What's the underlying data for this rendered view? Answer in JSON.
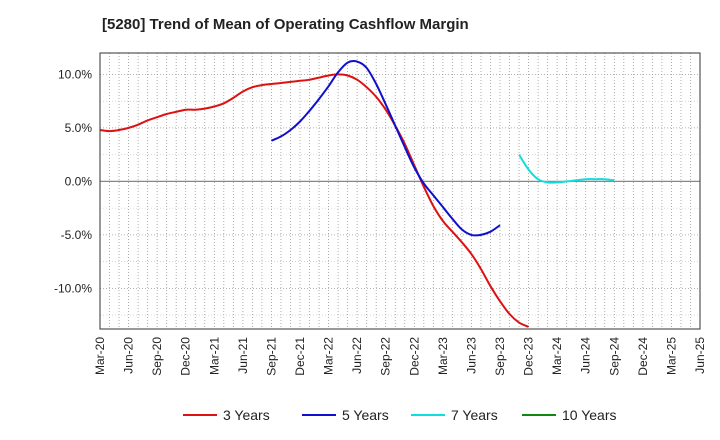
{
  "title": "[5280]  Trend of Mean of Operating Cashflow Margin",
  "chart_data": {
    "type": "line",
    "title": "[5280]  Trend of Mean of Operating Cashflow Margin",
    "xlabel": "",
    "ylabel": "",
    "x_tick_labels": [
      "Mar-20",
      "Jun-20",
      "Sep-20",
      "Dec-20",
      "Mar-21",
      "Jun-21",
      "Sep-21",
      "Dec-21",
      "Mar-22",
      "Jun-22",
      "Sep-22",
      "Dec-22",
      "Mar-23",
      "Jun-23",
      "Sep-23",
      "Dec-23",
      "Mar-24",
      "Jun-24",
      "Sep-24",
      "Dec-24",
      "Mar-25",
      "Jun-25"
    ],
    "y_ticks": [
      10,
      5,
      0,
      -5,
      -10
    ],
    "y_tick_labels": [
      "10.0%",
      "5.0%",
      "0.0%",
      "-5.0%",
      "-10.0%"
    ],
    "ylim": [
      -13.8,
      12.0
    ],
    "grid": true,
    "legend_position": "bottom",
    "series": [
      {
        "name": "3 Years",
        "color": "#dd1111",
        "x_index": [
          0,
          1,
          2,
          3,
          4,
          5,
          6,
          7,
          8,
          9,
          10,
          11,
          12,
          13,
          14,
          15,
          16,
          17,
          18,
          19,
          20,
          21,
          22,
          23,
          24,
          25,
          26,
          27,
          28,
          29,
          30,
          31,
          32,
          33,
          34,
          35,
          36,
          37,
          38,
          39,
          40,
          41,
          42,
          43,
          44,
          45,
          46,
          47,
          48,
          49,
          50,
          51,
          52,
          53,
          54,
          55,
          56,
          57,
          58,
          59,
          60
        ],
        "values": [
          4.8,
          4.7,
          4.8,
          5.0,
          5.3,
          5.7,
          6.0,
          6.3,
          6.5,
          6.7,
          6.7,
          6.8,
          7.0,
          7.3,
          7.8,
          8.4,
          8.8,
          9.0,
          9.1,
          9.2,
          9.3,
          9.4,
          9.5,
          9.7,
          9.9,
          10.0,
          9.9,
          9.5,
          8.8,
          7.9,
          6.7,
          5.2,
          3.5,
          1.5,
          -0.5,
          -2.3,
          -3.7,
          -4.7,
          -5.7,
          -6.8,
          -8.2,
          -9.8,
          -11.2,
          -12.4,
          -13.2,
          -13.6,
          -13.6,
          -13.6,
          -13.6,
          -13.6,
          -13.6,
          -13.6,
          -13.6,
          -13.6,
          -13.6,
          -13.6,
          -13.6,
          -13.6,
          -13.6,
          -13.6,
          -13.6
        ],
        "length": 46
      },
      {
        "name": "5 Years",
        "color": "#1010cc",
        "x_start_index": 18,
        "values": [
          3.8,
          4.2,
          4.8,
          5.6,
          6.6,
          7.7,
          8.9,
          10.2,
          11.1,
          11.2,
          10.6,
          9.1,
          7.2,
          5.2,
          3.2,
          1.3,
          -0.2,
          -1.3,
          -2.4,
          -3.5,
          -4.5,
          -5.0,
          -5.0,
          -4.7,
          -4.1
        ]
      },
      {
        "name": "7 Years",
        "color": "#11dddd",
        "x_start_index": 44,
        "values": [
          2.5,
          1.1,
          0.2,
          -0.1,
          -0.1,
          0.0,
          0.1,
          0.2,
          0.2,
          0.2,
          0.1
        ]
      },
      {
        "name": "10 Years",
        "color": "#118811",
        "values": []
      }
    ]
  }
}
